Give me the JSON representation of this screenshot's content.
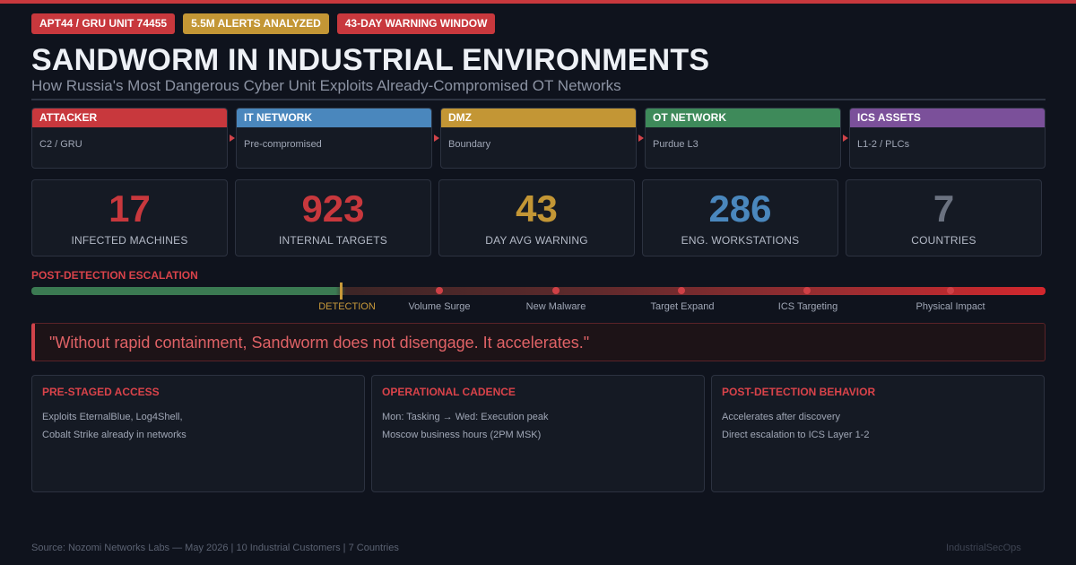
{
  "colors": {
    "red": "#c8383d",
    "blue": "#4a87bd",
    "gold": "#c39635",
    "green": "#3e8a5a",
    "purple": "#7b509a",
    "gray": "#6b7280"
  },
  "badges": [
    {
      "label": "APT44 / GRU UNIT 74455",
      "color": "#c8383d"
    },
    {
      "label": "5.5M ALERTS ANALYZED",
      "color": "#c39635"
    },
    {
      "label": "43-DAY WARNING WINDOW",
      "color": "#c8383d"
    }
  ],
  "header": {
    "title": "SANDWORM IN INDUSTRIAL ENVIRONMENTS",
    "subtitle": "How Russia's Most Dangerous Cyber Unit Exploits Already-Compromised OT Networks"
  },
  "chain": [
    {
      "label": "ATTACKER",
      "sub": "C2 / GRU",
      "color": "#c8383d"
    },
    {
      "label": "IT NETWORK",
      "sub": "Pre-compromised",
      "color": "#4a87bd"
    },
    {
      "label": "DMZ",
      "sub": "Boundary",
      "color": "#c39635"
    },
    {
      "label": "OT NETWORK",
      "sub": "Purdue L3",
      "color": "#3e8a5a"
    },
    {
      "label": "ICS ASSETS",
      "sub": "L1-2 / PLCs",
      "color": "#7b509a"
    }
  ],
  "stats": [
    {
      "value": "17",
      "label": "INFECTED MACHINES",
      "color": "#c8383d"
    },
    {
      "value": "923",
      "label": "INTERNAL TARGETS",
      "color": "#c8383d"
    },
    {
      "value": "43",
      "label": "DAY AVG WARNING",
      "color": "#c39635"
    },
    {
      "value": "286",
      "label": "ENG. WORKSTATIONS",
      "color": "#4a87bd"
    },
    {
      "value": "7",
      "label": "COUNTRIES",
      "color": "#6b7280"
    }
  ],
  "escalation": {
    "title": "POST-DETECTION ESCALATION",
    "detection_label": "DETECTION",
    "stages": [
      "Volume Surge",
      "New Malware",
      "Target Expand",
      "ICS Targeting",
      "Physical Impact"
    ]
  },
  "quote": "\"Without rapid containment, Sandworm does not disengage. It accelerates.\"",
  "cards": [
    {
      "title": "PRE-STAGED ACCESS",
      "lines": [
        "Exploits EternalBlue, Log4Shell,",
        "Cobalt Strike already in networks"
      ]
    },
    {
      "title": "OPERATIONAL CADENCE",
      "lines": [
        "Mon: Tasking → Wed: Execution peak",
        "Moscow business hours (2PM MSK)"
      ]
    },
    {
      "title": "POST-DETECTION BEHAVIOR",
      "lines": [
        "Accelerates after discovery",
        "Direct escalation to ICS Layer 1-2"
      ]
    }
  ],
  "footer": {
    "source": "Source: Nozomi Networks Labs — May 2026 | 10 Industrial Customers | 7 Countries",
    "brand": "IndustrialSecOps"
  }
}
